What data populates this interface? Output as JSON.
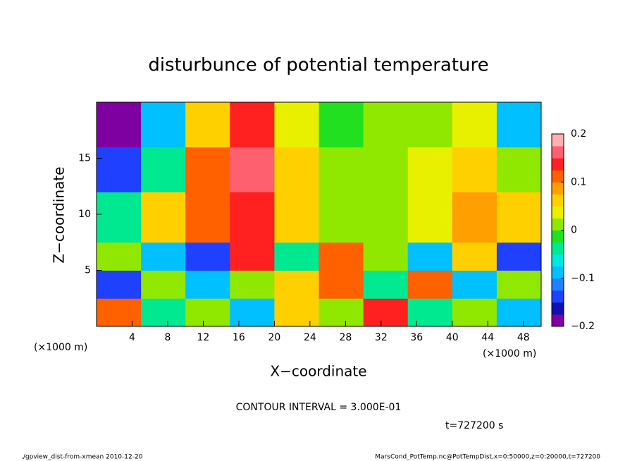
{
  "chart_data": {
    "type": "heatmap",
    "title": "disturbunce of potential temperature",
    "x_label": "X−coordinate",
    "y_label": "Z−coordinate",
    "x_unit_left": "(×1000 m)",
    "x_unit_right": "(×1000 m)",
    "contour_note": "CONTOUR INTERVAL = 3.000E-01",
    "time_note": "t=727200 s",
    "footer_left": "./gpview_dist-from-xmean  2010-12-20",
    "footer_right": "MarsCond_PotTemp.nc@PotTempDist,x=0:50000,z=0:20000,t=727200",
    "xlim": [
      0,
      50
    ],
    "ylim": [
      0,
      20
    ],
    "xticks": [
      4,
      8,
      12,
      16,
      20,
      24,
      28,
      32,
      36,
      40,
      44,
      48
    ],
    "yticks": [
      5,
      10,
      15
    ],
    "xbins": [
      0,
      5,
      10,
      15,
      20,
      25,
      30,
      35,
      40,
      45,
      50
    ],
    "ybins": [
      0,
      2.5,
      5,
      7.5,
      12,
      16,
      20
    ],
    "z": [
      [
        0.1,
        -0.05,
        0.0,
        -0.1,
        0.05,
        0.0,
        0.15,
        -0.05,
        0.0,
        -0.1
      ],
      [
        -0.15,
        0.0,
        -0.1,
        0.0,
        0.05,
        0.1,
        -0.05,
        0.1,
        -0.1,
        0.0
      ],
      [
        0.0,
        -0.1,
        -0.15,
        0.15,
        -0.05,
        0.1,
        0.0,
        -0.1,
        0.05,
        -0.15
      ],
      [
        -0.05,
        0.05,
        0.12,
        0.15,
        0.07,
        0.02,
        0.0,
        0.03,
        0.08,
        0.05
      ],
      [
        -0.15,
        -0.05,
        0.12,
        0.16,
        0.05,
        0.0,
        0.0,
        0.03,
        0.06,
        0.0
      ],
      [
        -0.2,
        -0.1,
        0.07,
        0.13,
        0.04,
        -0.01,
        0.0,
        0.02,
        0.03,
        -0.08
      ]
    ],
    "clim": [
      -0.2,
      0.2
    ],
    "cticks": [
      {
        "value": -0.2,
        "label": "−0.2"
      },
      {
        "value": -0.1,
        "label": "−0.1"
      },
      0,
      0.1,
      0.2
    ],
    "colors": [
      "#7f00a0",
      "#1010b0",
      "#2040ff",
      "#2080ff",
      "#00c0ff",
      "#00e8e0",
      "#00e890",
      "#20e020",
      "#90e800",
      "#e8f000",
      "#ffd000",
      "#ffa000",
      "#ff6000",
      "#ff2020",
      "#ff6070",
      "#ffb0b0"
    ]
  }
}
